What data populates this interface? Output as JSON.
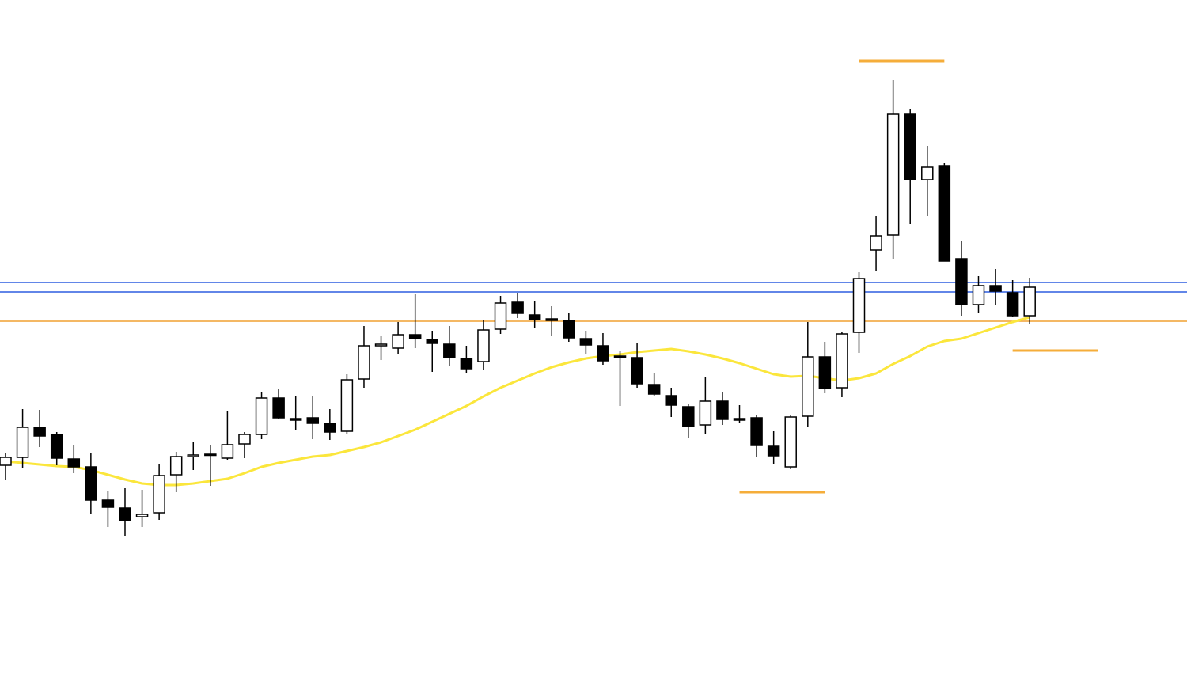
{
  "chart_data": {
    "type": "candlestick",
    "ylim": [
      128,
      1000
    ],
    "grid": false,
    "up_color": "#ffffff",
    "down_color": "#000000",
    "open": [
      412,
      422,
      460,
      451,
      420,
      410,
      368,
      358,
      347,
      352,
      400,
      423,
      425,
      421,
      439,
      451,
      497,
      471,
      472,
      465,
      455,
      521,
      563,
      560,
      577,
      571,
      565,
      547,
      543,
      584,
      618,
      602,
      597,
      595,
      572,
      563,
      550,
      548,
      514,
      500,
      486,
      463,
      493,
      471,
      472,
      436,
      410,
      474,
      549,
      510,
      580,
      684,
      703,
      856,
      773,
      790,
      673,
      615,
      639,
      630,
      601
    ],
    "high": [
      427,
      483,
      482,
      454,
      437,
      427,
      380,
      383,
      381,
      414,
      429,
      442,
      438,
      481,
      454,
      505,
      508,
      499,
      500,
      483,
      527,
      588,
      576,
      593,
      628,
      582,
      588,
      563,
      595,
      626,
      630,
      620,
      613,
      604,
      582,
      579,
      556,
      567,
      529,
      510,
      490,
      524,
      505,
      488,
      476,
      455,
      476,
      593,
      568,
      581,
      656,
      727,
      899,
      862,
      816,
      794,
      696,
      651,
      660,
      646,
      649
    ],
    "low": [
      393,
      409,
      435,
      412,
      402,
      350,
      334,
      323,
      334,
      343,
      378,
      406,
      386,
      419,
      421,
      445,
      470,
      456,
      445,
      444,
      451,
      510,
      545,
      552,
      560,
      530,
      538,
      529,
      533,
      578,
      598,
      586,
      576,
      568,
      552,
      539,
      487,
      510,
      499,
      473,
      447,
      451,
      463,
      465,
      423,
      414,
      407,
      461,
      503,
      498,
      554,
      658,
      673,
      717,
      727,
      670,
      601,
      605,
      614,
      599,
      591
    ],
    "close": [
      422,
      460,
      449,
      421,
      410,
      368,
      359,
      342,
      350,
      399,
      423,
      425,
      426,
      438,
      451,
      497,
      472,
      469,
      465,
      454,
      520,
      563,
      565,
      577,
      572,
      566,
      548,
      534,
      583,
      617,
      604,
      596,
      595,
      573,
      564,
      544,
      548,
      515,
      502,
      488,
      461,
      493,
      470,
      469,
      437,
      424,
      473,
      549,
      509,
      578,
      648,
      702,
      856,
      773,
      789,
      670,
      615,
      639,
      632,
      601,
      637
    ],
    "moving_average": {
      "color": "#fbe63c",
      "values": [
        417,
        415,
        413,
        411,
        410,
        406,
        400,
        394,
        389,
        387,
        387,
        389,
        392,
        395,
        402,
        410,
        415,
        419,
        423,
        425,
        430,
        435,
        441,
        449,
        457,
        467,
        477,
        487,
        499,
        510,
        519,
        528,
        536,
        542,
        547,
        550,
        552,
        555,
        557,
        559,
        556,
        552,
        547,
        541,
        534,
        527,
        524,
        525,
        522,
        519,
        522,
        528,
        540,
        550,
        562,
        569,
        572,
        579,
        586,
        593,
        599
      ]
    },
    "hlines": [
      {
        "value": 643,
        "color": "#2f5fe0"
      },
      {
        "value": 631,
        "color": "#2f5fe0"
      },
      {
        "value": 594,
        "color": "#f0a030"
      }
    ],
    "segments": [
      {
        "value": 923,
        "start": 50,
        "end": 55,
        "color": "#f5ad3a"
      },
      {
        "value": 557,
        "start": 59,
        "end": 64,
        "color": "#f5ad3a"
      },
      {
        "value": 378,
        "start": 43,
        "end": 48,
        "color": "#f5ad3a"
      }
    ]
  }
}
